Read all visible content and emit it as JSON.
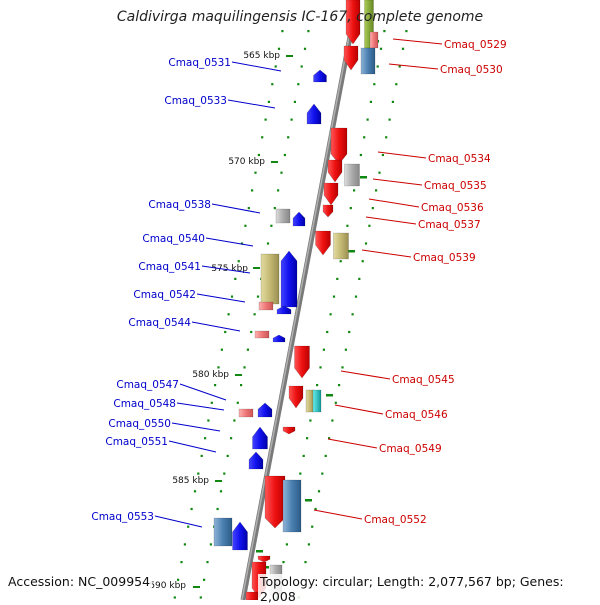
{
  "title": "Caldivirga maquilingensis IC-167, complete genome",
  "footer": {
    "accession": "Accession: NC_009954",
    "summary": "Topology: circular; Length: 2,077,567 bp; Genes: 2,008"
  },
  "colors": {
    "left_strand_label": "#0000cc",
    "right_strand_label": "#cc0000",
    "tick": "#118811",
    "backbone": "#888888"
  },
  "scale_labels": [
    "565 kbp",
    "570 kbp",
    "575 kbp",
    "580 kbp",
    "585 kbp",
    "590 kbp"
  ],
  "genes_left": [
    "Cmaq_0531",
    "Cmaq_0533",
    "Cmaq_0538",
    "Cmaq_0540",
    "Cmaq_0541",
    "Cmaq_0542",
    "Cmaq_0544",
    "Cmaq_0547",
    "Cmaq_0548",
    "Cmaq_0550",
    "Cmaq_0551",
    "Cmaq_0553"
  ],
  "genes_right": [
    "Cmaq_0529",
    "Cmaq_0530",
    "Cmaq_0534",
    "Cmaq_0535",
    "Cmaq_0536",
    "Cmaq_0537",
    "Cmaq_0539",
    "Cmaq_0545",
    "Cmaq_0546",
    "Cmaq_0549",
    "Cmaq_0552"
  ]
}
